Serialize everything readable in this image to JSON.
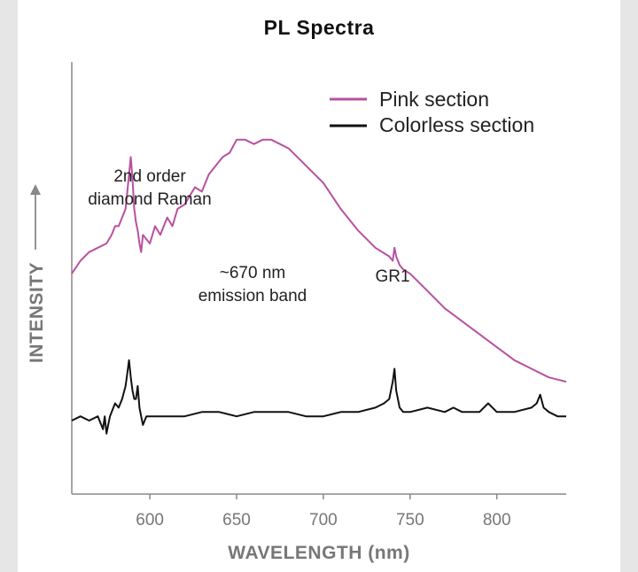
{
  "chart_data": {
    "type": "line",
    "title": "PL Spectra",
    "xlabel": "WAVELENGTH (nm)",
    "ylabel": "INTENSITY",
    "xlim": [
      555,
      840
    ],
    "ylim": [
      0,
      100
    ],
    "xticks": [
      600,
      650,
      700,
      750,
      800
    ],
    "tick_labels": [
      "600",
      "650",
      "700",
      "750",
      "800"
    ],
    "series": [
      {
        "name": "Pink section",
        "color": "#b9509f",
        "x": [
          555,
          560,
          565,
          570,
          575,
          578,
          580,
          582,
          584,
          586,
          587,
          588,
          589,
          590,
          591,
          592,
          593,
          594,
          595,
          596,
          598,
          600,
          603,
          606,
          610,
          613,
          616,
          620,
          623,
          626,
          630,
          634,
          638,
          642,
          646,
          650,
          655,
          660,
          665,
          670,
          675,
          680,
          690,
          700,
          710,
          720,
          730,
          738,
          740,
          741,
          742,
          744,
          746,
          750,
          760,
          770,
          780,
          790,
          800,
          810,
          820,
          830,
          840
        ],
        "values": [
          51,
          54,
          56,
          57,
          58,
          60,
          62,
          62,
          64,
          66,
          70,
          74,
          78,
          73,
          66,
          63,
          61,
          58,
          56,
          60,
          59,
          58,
          62,
          60,
          64,
          62,
          66,
          67,
          69,
          71,
          70,
          74,
          76,
          78,
          79,
          82,
          82,
          81,
          82,
          82,
          81,
          80,
          76,
          72,
          66,
          61,
          57,
          55,
          54,
          57,
          55,
          53,
          52,
          51,
          47,
          43,
          40,
          37,
          34,
          31,
          29,
          27,
          26
        ]
      },
      {
        "name": "Colorless section",
        "color": "#111111",
        "x": [
          555,
          560,
          565,
          570,
          572,
          573,
          574,
          575,
          576,
          577,
          578,
          580,
          582,
          584,
          586,
          587,
          588,
          589,
          590,
          591,
          592,
          593,
          594,
          595,
          596,
          598,
          600,
          610,
          620,
          630,
          640,
          650,
          660,
          670,
          680,
          690,
          700,
          710,
          720,
          730,
          735,
          738,
          740,
          741,
          742,
          744,
          746,
          750,
          760,
          770,
          775,
          780,
          790,
          795,
          800,
          810,
          820,
          823,
          825,
          827,
          830,
          835,
          840
        ],
        "values": [
          17,
          18,
          17,
          18,
          16,
          15,
          18,
          14,
          16,
          18,
          19,
          21,
          20,
          22,
          25,
          28,
          31,
          27,
          24,
          22,
          22,
          25,
          20,
          18,
          16,
          18,
          18,
          18,
          18,
          19,
          19,
          18,
          19,
          19,
          19,
          18,
          18,
          19,
          19,
          20,
          21,
          22,
          26,
          29,
          24,
          20,
          19,
          19,
          20,
          19,
          20,
          19,
          19,
          21,
          19,
          19,
          20,
          21,
          23,
          20,
          19,
          18,
          18
        ]
      }
    ],
    "annotations": [
      {
        "line1": "2nd order",
        "line2": "diamond Raman",
        "at_x": 589
      },
      {
        "line1": "~670 nm",
        "line2": "emission band",
        "at_x": 665
      },
      {
        "line1": "GR1",
        "line2": "",
        "at_x": 741
      }
    ]
  }
}
